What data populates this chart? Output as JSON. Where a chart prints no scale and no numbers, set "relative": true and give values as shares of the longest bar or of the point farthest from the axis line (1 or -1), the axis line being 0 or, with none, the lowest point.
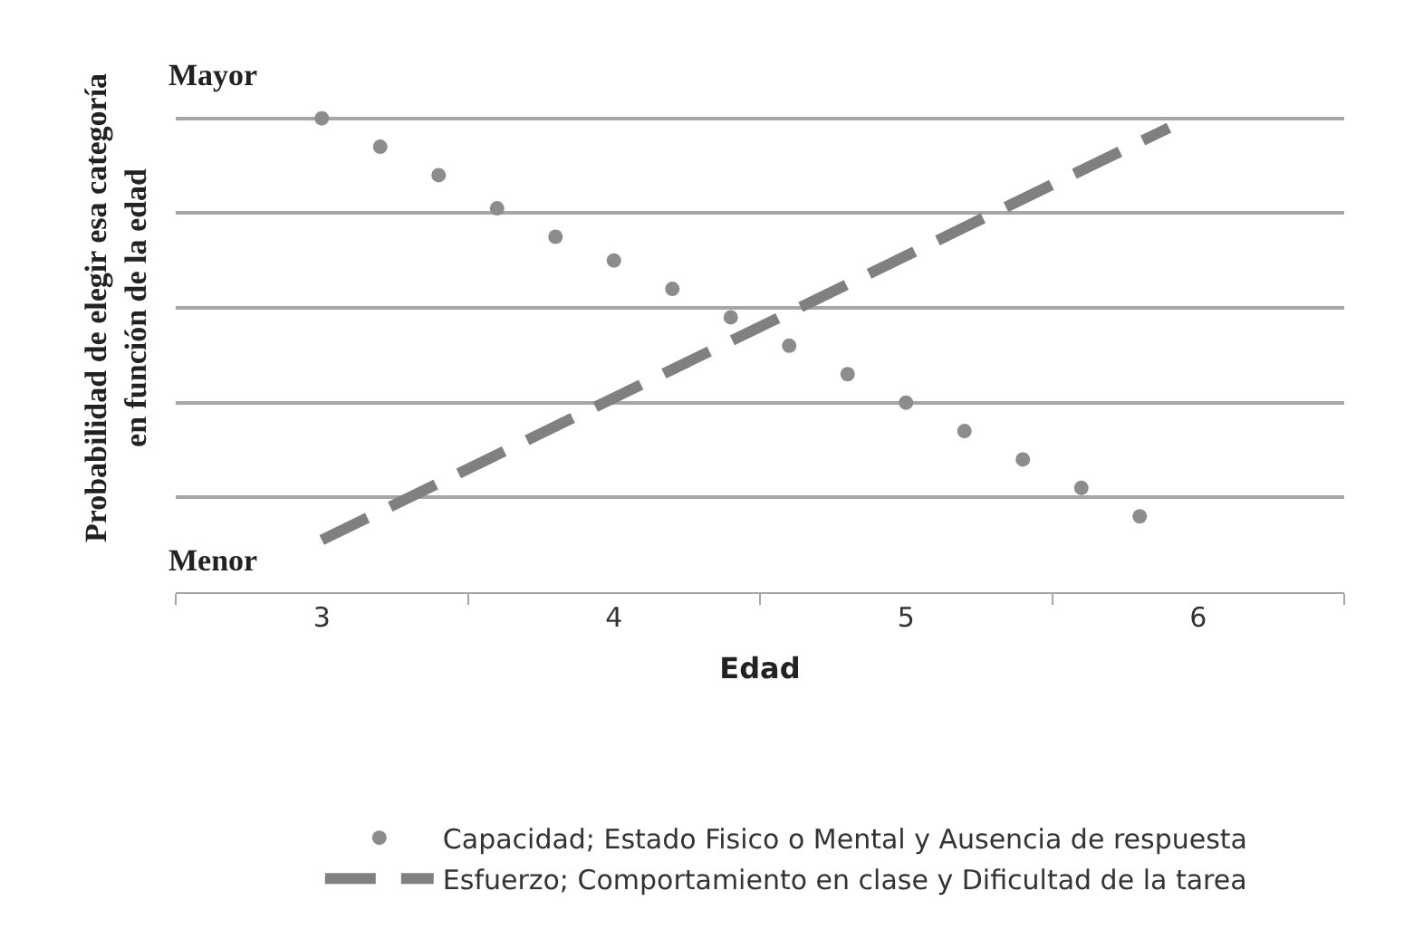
{
  "chart_data": {
    "type": "line",
    "relative": true,
    "xlabel": "Edad",
    "ylabel": "Probabilidad de elegir esa categoría\nen función de la edad",
    "annotations": [
      "Mayor",
      "Menor"
    ],
    "xlim": [
      2.5,
      6.5
    ],
    "xticks": [
      {
        "value": 2.5,
        "label": null
      },
      3,
      {
        "value": 3.5,
        "label": null
      },
      4,
      {
        "value": 4.5,
        "label": null
      },
      5,
      {
        "value": 5.5,
        "label": null
      },
      6,
      {
        "value": 6.5,
        "label": null
      }
    ],
    "grid": "y",
    "legend": "bottom",
    "series": [
      {
        "name": "Capacidad; Estado Fisico o Mental y Ausencia de respuesta",
        "type": "scatter",
        "marker": "circle",
        "color": "#8c8c8c",
        "x": [
          3.0,
          3.2,
          3.4,
          3.6,
          3.8,
          4.0,
          4.2,
          4.4,
          4.6,
          4.8,
          5.0,
          5.2,
          5.4,
          5.6,
          5.8
        ],
        "values": [
          1,
          0.94,
          0.88,
          0.81,
          0.75,
          0.7,
          0.64,
          0.58,
          0.52,
          0.46,
          0.4,
          0.34,
          0.28,
          0.22,
          0.16
        ]
      },
      {
        "name": "Esfuerzo; Comportamiento en clase y Dificultad de la tarea",
        "line_style": "dashed",
        "color": "#808080",
        "x": [
          3.0,
          5.9
        ],
        "values": [
          0.11,
          0.98
        ]
      }
    ]
  }
}
